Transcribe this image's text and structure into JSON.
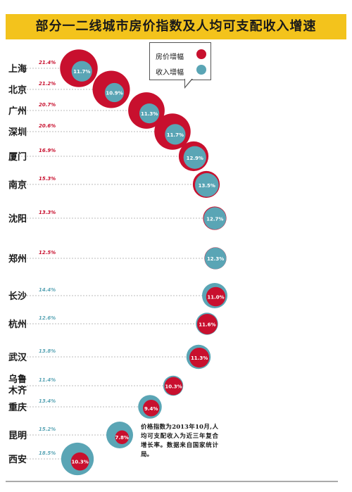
{
  "title": "部分一二线城市房价指数及人均可支配收入增速",
  "legend": {
    "house_label": "房价增幅",
    "income_label": "收入增幅"
  },
  "colors": {
    "house": "#c8102e",
    "income": "#5aa5b5",
    "title_bg": "#f3c31c"
  },
  "note": "价格指数为2013年10月,人均可支配收入为近三年复合增长率。数据来自国家统计局。",
  "chart_data": {
    "type": "bubble",
    "series": [
      {
        "name": "房价增幅",
        "color": "#c8102e"
      },
      {
        "name": "收入增幅",
        "color": "#5aa5b5"
      }
    ],
    "rows": [
      {
        "city": "上海",
        "house": 21.4,
        "income": 11.7,
        "house_label": "21.4%",
        "income_label": "11.7%"
      },
      {
        "city": "北京",
        "house": 21.2,
        "income": 10.9,
        "house_label": "21.2%",
        "income_label": "10.9%"
      },
      {
        "city": "广州",
        "house": 20.7,
        "income": 11.3,
        "house_label": "20.7%",
        "income_label": "11.3%"
      },
      {
        "city": "深圳",
        "house": 20.6,
        "income": 11.7,
        "house_label": "20.6%",
        "income_label": "11.7%"
      },
      {
        "city": "厦门",
        "house": 16.9,
        "income": 12.9,
        "house_label": "16.9%",
        "income_label": "12.9%"
      },
      {
        "city": "南京",
        "house": 15.3,
        "income": 13.5,
        "house_label": "15.3%",
        "income_label": "13.5%"
      },
      {
        "city": "沈阳",
        "house": 13.3,
        "income": 12.7,
        "house_label": "13.3%",
        "income_label": "12.7%"
      },
      {
        "city": "郑州",
        "house": 12.5,
        "income": 12.3,
        "house_label": "12.5%",
        "income_label": "12.3%"
      },
      {
        "city": "长沙",
        "house": 11.0,
        "income": 14.4,
        "house_label": "11.0%",
        "income_label": "14.4%"
      },
      {
        "city": "杭州",
        "house": 11.6,
        "income": 12.6,
        "house_label": "11.6%",
        "income_label": "12.6%"
      },
      {
        "city": "武汉",
        "house": 11.3,
        "income": 13.8,
        "house_label": "11.3%",
        "income_label": "13.8%"
      },
      {
        "city": "乌鲁木齐",
        "house": 10.3,
        "income": 11.4,
        "house_label": "10.3%",
        "income_label": "11.4%"
      },
      {
        "city": "重庆",
        "house": 9.4,
        "income": 13.4,
        "house_label": "9.4%",
        "income_label": "13.4%"
      },
      {
        "city": "昆明",
        "house": 7.8,
        "income": 15.2,
        "house_label": "7.8%",
        "income_label": "15.2%"
      },
      {
        "city": "西安",
        "house": 10.3,
        "income": 18.5,
        "house_label": "10.3%",
        "income_label": "18.5%"
      }
    ]
  }
}
